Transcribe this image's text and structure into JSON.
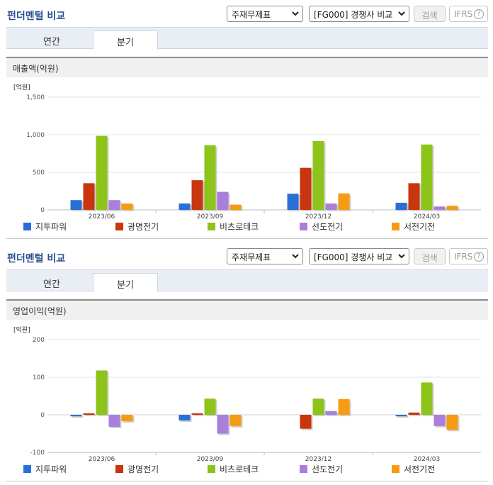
{
  "sections": [
    {
      "title": "펀더멘털 비교",
      "select1": "주재무제표",
      "select2": "[FG000] 경쟁사 비교",
      "search_button": "검색",
      "ifrs_button": "IFRS",
      "tab_annual": "연간",
      "tab_quarter": "분기",
      "metric_label": "매출액(억원)"
    },
    {
      "title": "펀더멘털 비교",
      "select1": "주재무제표",
      "select2": "[FG000] 경쟁사 비교",
      "search_button": "검색",
      "ifrs_button": "IFRS",
      "tab_annual": "연간",
      "tab_quarter": "분기",
      "metric_label": "영업이익(억원)"
    }
  ],
  "chart_data": [
    {
      "type": "bar",
      "unit_label": "[억원]",
      "categories": [
        "2023/06",
        "2023/09",
        "2023/12",
        "2024/03"
      ],
      "ylim": [
        0,
        1500
      ],
      "yticks": [
        "0",
        "500",
        "1,000",
        "1,500"
      ],
      "ytick_values": [
        0,
        500,
        1000,
        1500
      ],
      "grid": true,
      "legend_position": "bottom",
      "series": [
        {
          "name": "지투파워",
          "color": "#2a6fd6",
          "values": [
            130,
            85,
            215,
            95
          ]
        },
        {
          "name": "광명전기",
          "color": "#c8350e",
          "values": [
            355,
            395,
            560,
            355
          ]
        },
        {
          "name": "비츠로테크",
          "color": "#8dc41a",
          "values": [
            985,
            860,
            915,
            870
          ]
        },
        {
          "name": "선도전기",
          "color": "#a97fdb",
          "values": [
            130,
            240,
            85,
            45
          ]
        },
        {
          "name": "서전기전",
          "color": "#f59b14",
          "values": [
            85,
            70,
            220,
            55
          ]
        }
      ]
    },
    {
      "type": "bar",
      "unit_label": "[억원]",
      "categories": [
        "2023/06",
        "2023/09",
        "2023/12",
        "2024/03"
      ],
      "ylim": [
        -100,
        200
      ],
      "yticks": [
        "-100",
        "0",
        "100",
        "200"
      ],
      "ytick_values": [
        -100,
        0,
        100,
        200
      ],
      "grid": true,
      "legend_position": "bottom",
      "series": [
        {
          "name": "지투파워",
          "color": "#2a6fd6",
          "values": [
            -4,
            -15,
            0,
            -4
          ]
        },
        {
          "name": "광명전기",
          "color": "#c8350e",
          "values": [
            4,
            4,
            -37,
            6
          ]
        },
        {
          "name": "비츠로테크",
          "color": "#8dc41a",
          "values": [
            118,
            43,
            43,
            86
          ]
        },
        {
          "name": "선도전기",
          "color": "#a97fdb",
          "values": [
            -32,
            -50,
            10,
            -30
          ]
        },
        {
          "name": "서전기전",
          "color": "#f59b14",
          "values": [
            -17,
            -30,
            42,
            -40
          ]
        }
      ]
    }
  ],
  "icons": {
    "select_chevron": "chevron-down-icon",
    "help": "question-circle-icon"
  }
}
